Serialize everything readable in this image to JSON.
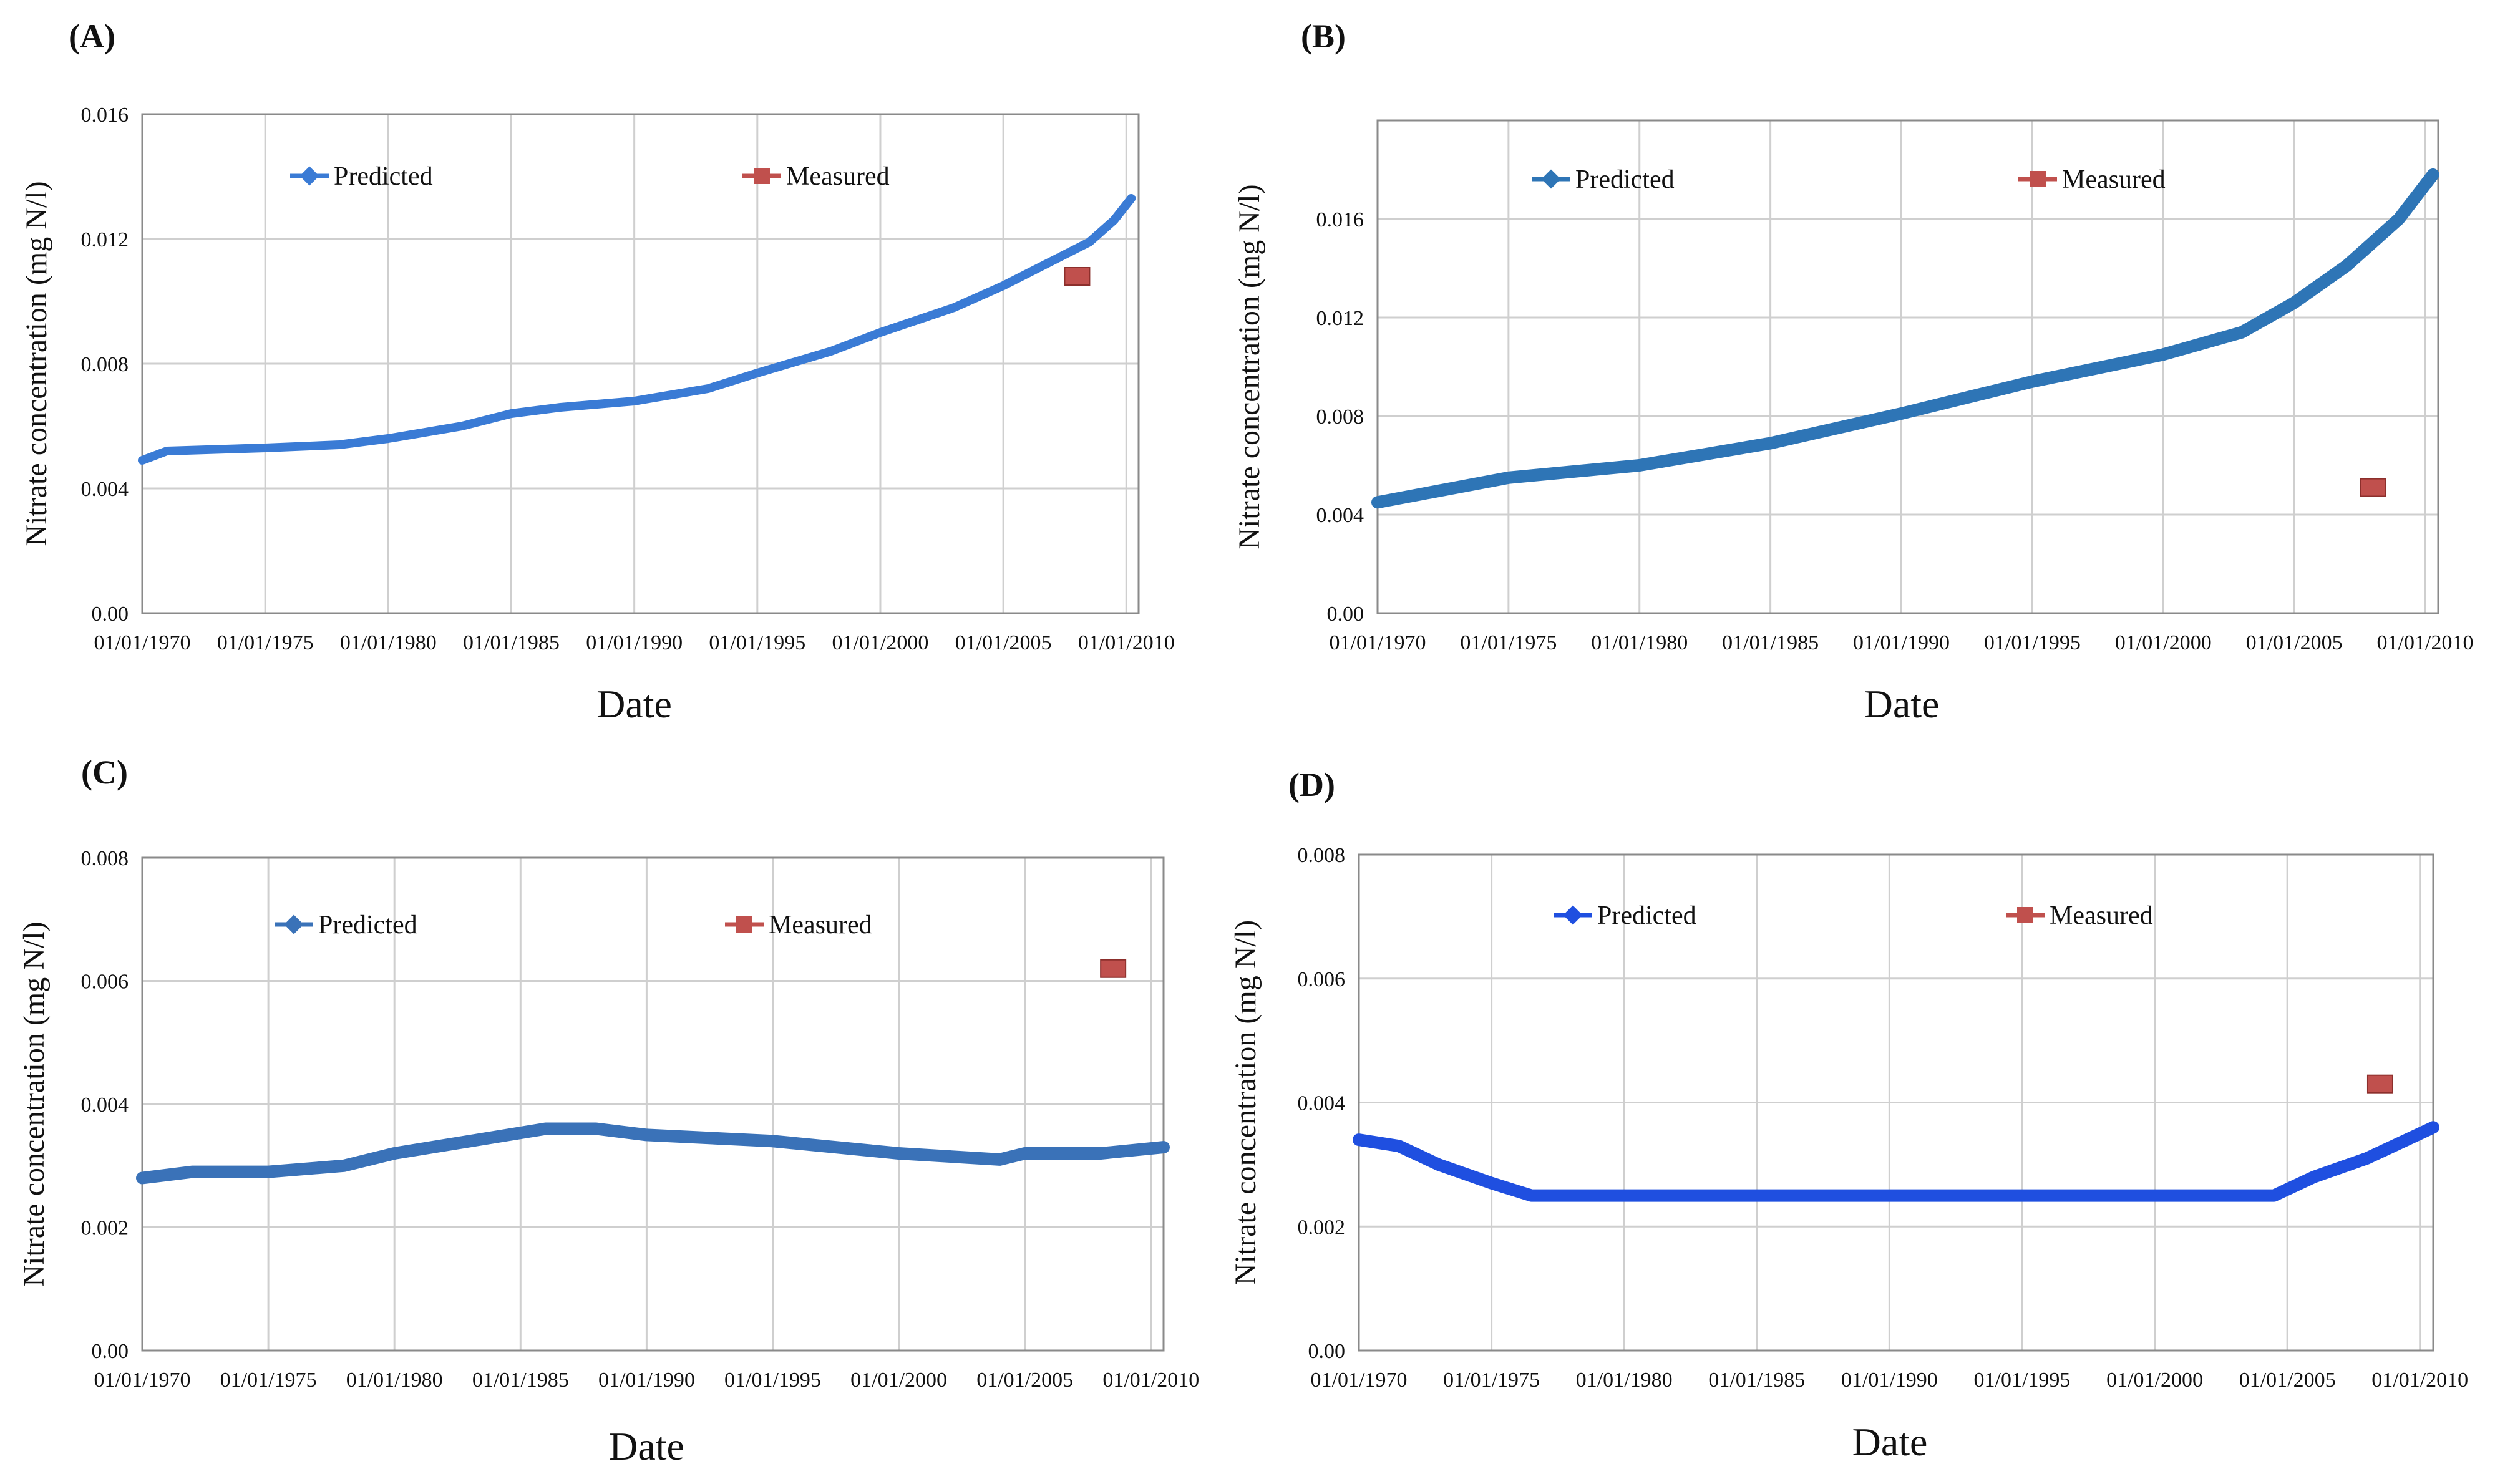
{
  "figure": {
    "panels": [
      "A",
      "B",
      "C",
      "D"
    ]
  },
  "chart_data": [
    {
      "id": "A",
      "type": "line",
      "panel_label": "(A)",
      "title": "",
      "xlabel": "Date",
      "ylabel": "Nitrate concentration (mg N/l)",
      "xlim": [
        1970,
        2010.5
      ],
      "ylim": [
        0,
        0.016
      ],
      "x_tick_values": [
        1970,
        1975,
        1980,
        1985,
        1990,
        1995,
        2000,
        2005,
        2010
      ],
      "x_tick_labels": [
        "01/01/1970",
        "01/01/1975",
        "01/01/1980",
        "01/01/1985",
        "01/01/1990",
        "01/01/1995",
        "01/01/2000",
        "01/01/2005",
        "01/01/2010"
      ],
      "y_tick_values": [
        0,
        0.004,
        0.008,
        0.012,
        0.016
      ],
      "y_tick_labels": [
        "0.00",
        "0.004",
        "0.008",
        "0.012",
        "0.016"
      ],
      "grid": true,
      "legend": [
        "Predicted",
        "Measured"
      ],
      "series": [
        {
          "name": "Predicted",
          "color": "#3a7bd5",
          "points": [
            [
              1970,
              0.0049
            ],
            [
              1971,
              0.0052
            ],
            [
              1975,
              0.0053
            ],
            [
              1978,
              0.0054
            ],
            [
              1980,
              0.0056
            ],
            [
              1983,
              0.006
            ],
            [
              1985,
              0.0064
            ],
            [
              1987,
              0.0066
            ],
            [
              1990,
              0.0068
            ],
            [
              1993,
              0.0072
            ],
            [
              1995,
              0.0077
            ],
            [
              1998,
              0.0084
            ],
            [
              2000,
              0.009
            ],
            [
              2003,
              0.0098
            ],
            [
              2005,
              0.0105
            ],
            [
              2007,
              0.0113
            ],
            [
              2008.5,
              0.0119
            ],
            [
              2009.5,
              0.0126
            ],
            [
              2010.2,
              0.0133
            ]
          ]
        },
        {
          "name": "Measured",
          "color": "#c0504d",
          "points": [
            [
              2008,
              0.0108
            ]
          ]
        }
      ]
    },
    {
      "id": "B",
      "type": "line",
      "panel_label": "(B)",
      "title": "",
      "xlabel": "Date",
      "ylabel": "Nitrate concentration (mg N/l)",
      "xlim": [
        1970,
        2010.5
      ],
      "ylim": [
        0,
        0.02
      ],
      "x_tick_values": [
        1970,
        1975,
        1980,
        1985,
        1990,
        1995,
        2000,
        2005,
        2010
      ],
      "x_tick_labels": [
        "01/01/1970",
        "01/01/1975",
        "01/01/1980",
        "01/01/1985",
        "01/01/1990",
        "01/01/1995",
        "01/01/2000",
        "01/01/2005",
        "01/01/2010"
      ],
      "y_tick_values": [
        0,
        0.004,
        0.008,
        0.012,
        0.016
      ],
      "y_tick_labels": [
        "0.00",
        "0.004",
        "0.008",
        "0.012",
        "0.016"
      ],
      "grid": true,
      "legend": [
        "Predicted",
        "Measured"
      ],
      "series": [
        {
          "name": "Predicted",
          "color": "#2e75b6",
          "points": [
            [
              1970,
              0.0045
            ],
            [
              1972,
              0.0049
            ],
            [
              1975,
              0.0055
            ],
            [
              1980,
              0.006
            ],
            [
              1985,
              0.0069
            ],
            [
              1990,
              0.0081
            ],
            [
              1995,
              0.0094
            ],
            [
              2000,
              0.0105
            ],
            [
              2003,
              0.0114
            ],
            [
              2005,
              0.0126
            ],
            [
              2007,
              0.0141
            ],
            [
              2009,
              0.016
            ],
            [
              2010.3,
              0.0178
            ]
          ]
        },
        {
          "name": "Measured",
          "color": "#c0504d",
          "points": [
            [
              2008,
              0.0051
            ]
          ]
        }
      ]
    },
    {
      "id": "C",
      "type": "line",
      "panel_label": "(C)",
      "title": "",
      "xlabel": "Date",
      "ylabel": "Nitrate concentration (mg N/l)",
      "xlim": [
        1970,
        2010.5
      ],
      "ylim": [
        0,
        0.008
      ],
      "x_tick_values": [
        1970,
        1975,
        1980,
        1985,
        1990,
        1995,
        2000,
        2005,
        2010
      ],
      "x_tick_labels": [
        "01/01/1970",
        "01/01/1975",
        "01/01/1980",
        "01/01/1985",
        "01/01/1990",
        "01/01/1995",
        "01/01/2000",
        "01/01/2005",
        "01/01/2010"
      ],
      "y_tick_values": [
        0,
        0.002,
        0.004,
        0.006,
        0.008
      ],
      "y_tick_labels": [
        "0.00",
        "0.002",
        "0.004",
        "0.006",
        "0.008"
      ],
      "grid": true,
      "legend": [
        "Predicted",
        "Measured"
      ],
      "series": [
        {
          "name": "Predicted",
          "color": "#3a72b8",
          "points": [
            [
              1970,
              0.0028
            ],
            [
              1972,
              0.0029
            ],
            [
              1975,
              0.0029
            ],
            [
              1978,
              0.003
            ],
            [
              1980,
              0.0032
            ],
            [
              1983,
              0.0034
            ],
            [
              1986,
              0.0036
            ],
            [
              1988,
              0.0036
            ],
            [
              1990,
              0.0035
            ],
            [
              1995,
              0.0034
            ],
            [
              2000,
              0.0032
            ],
            [
              2004,
              0.0031
            ],
            [
              2005,
              0.0032
            ],
            [
              2008,
              0.0032
            ],
            [
              2010.5,
              0.0033
            ]
          ]
        },
        {
          "name": "Measured",
          "color": "#c0504d",
          "points": [
            [
              2008.5,
              0.0062
            ]
          ]
        }
      ]
    },
    {
      "id": "D",
      "type": "line",
      "panel_label": "(D)",
      "title": "",
      "xlabel": "Date",
      "ylabel": "Nitrate concentration (mg N/l)",
      "xlim": [
        1970,
        2010.5
      ],
      "ylim": [
        0,
        0.008
      ],
      "x_tick_values": [
        1970,
        1975,
        1980,
        1985,
        1990,
        1995,
        2000,
        2005,
        2010
      ],
      "x_tick_labels": [
        "01/01/1970",
        "01/01/1975",
        "01/01/1980",
        "01/01/1985",
        "01/01/1990",
        "01/01/1995",
        "01/01/2000",
        "01/01/2005",
        "01/01/2010"
      ],
      "y_tick_values": [
        0,
        0.002,
        0.004,
        0.006,
        0.008
      ],
      "y_tick_labels": [
        "0.00",
        "0.002",
        "0.004",
        "0.006",
        "0.008"
      ],
      "grid": true,
      "legend": [
        "Predicted",
        "Measured"
      ],
      "series": [
        {
          "name": "Predicted",
          "color": "#1f4fe0",
          "points": [
            [
              1970,
              0.0034
            ],
            [
              1971.5,
              0.0033
            ],
            [
              1973,
              0.003
            ],
            [
              1975,
              0.0027
            ],
            [
              1976.5,
              0.0025
            ],
            [
              1980,
              0.0025
            ],
            [
              1985,
              0.0025
            ],
            [
              1990,
              0.0025
            ],
            [
              1995,
              0.0025
            ],
            [
              2000,
              0.0025
            ],
            [
              2004.5,
              0.0025
            ],
            [
              2006,
              0.0028
            ],
            [
              2008,
              0.0031
            ],
            [
              2010.5,
              0.0036
            ]
          ]
        },
        {
          "name": "Measured",
          "color": "#c0504d",
          "points": [
            [
              2008.5,
              0.0043
            ]
          ]
        }
      ]
    }
  ]
}
